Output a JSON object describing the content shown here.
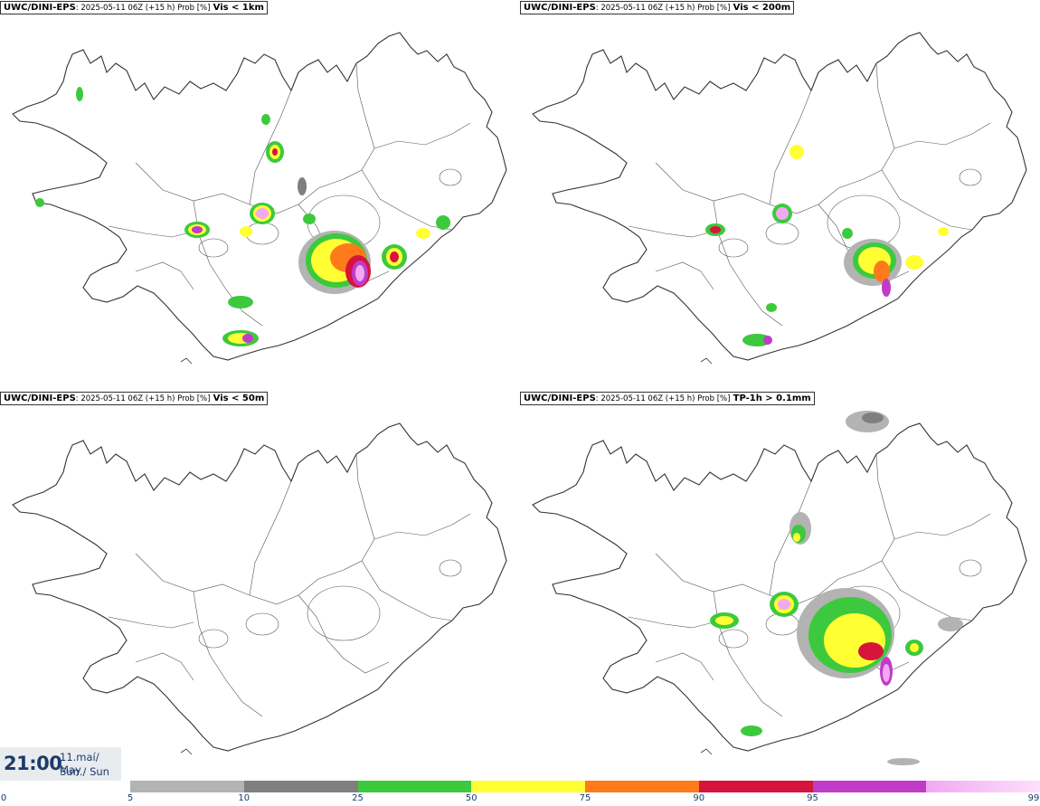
{
  "panels": [
    {
      "model": "UWC/DINI-EPS",
      "meta": ": 2025-05-11 06Z (+15 h) Prob [%]",
      "var": "Vis < 1km"
    },
    {
      "model": "UWC/DINI-EPS",
      "meta": ": 2025-05-11 06Z (+15 h) Prob [%]",
      "var": "Vis < 200m"
    },
    {
      "model": "UWC/DINI-EPS",
      "meta": ": 2025-05-11 06Z (+15 h) Prob [%]",
      "var": "Vis < 50m"
    },
    {
      "model": "UWC/DINI-EPS",
      "meta": ": 2025-05-11 06Z (+15 h) Prob [%]",
      "var": "TP-1h > 0.1mm"
    }
  ],
  "valid_time": {
    "time": "21:00",
    "date_line1": "11.maí/ May",
    "date_line2": "Sun./ Sun"
  },
  "legend": {
    "ticks": [
      "0",
      "5",
      "10",
      "25",
      "50",
      "75",
      "90",
      "95",
      "99"
    ],
    "colors": [
      "#b3b3b3",
      "#7f7f7f",
      "#3dc93d",
      "#ffff33",
      "#ff7a1a",
      "#d6143c",
      "#c03cc8",
      "#f2a8f2"
    ]
  }
}
